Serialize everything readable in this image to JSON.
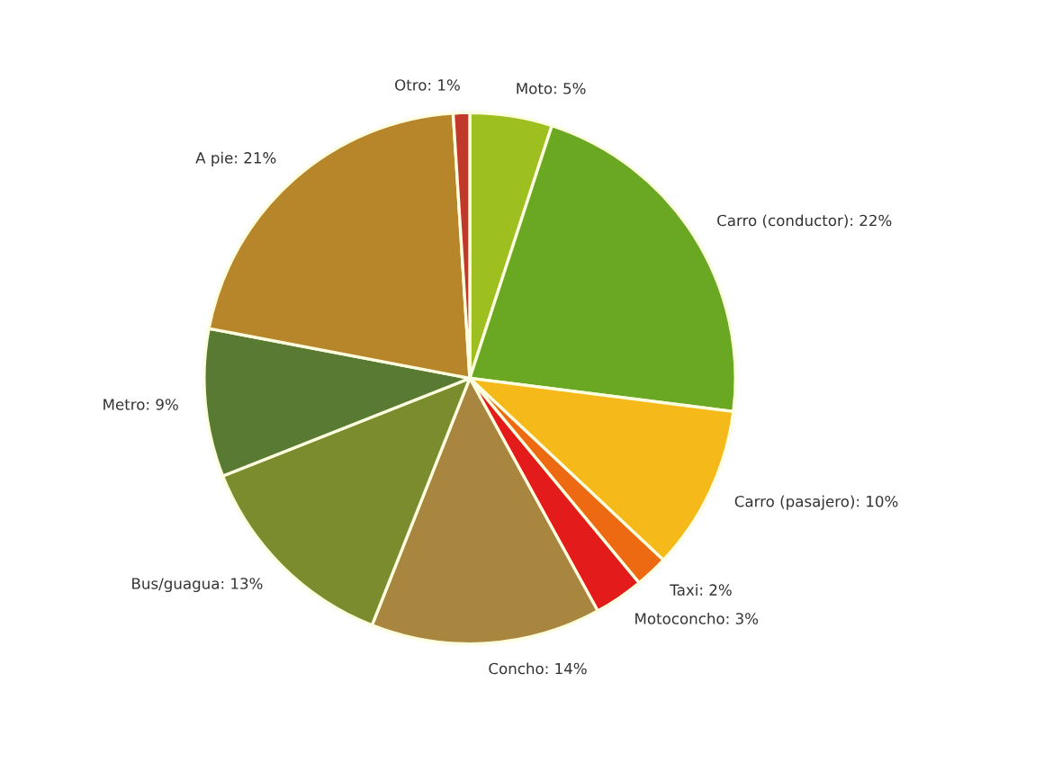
{
  "chart_data": {
    "type": "pie",
    "categories": [
      "Moto: 5%",
      "Carro (conductor): 22%",
      "Carro (pasajero): 10%",
      "Taxi: 2%",
      "Motoconcho: 3%",
      "Concho: 14%",
      "Bus/guagua: 13%",
      "Metro: 9%",
      "A pie: 21%",
      "Otro: 1%"
    ],
    "values": [
      5,
      22,
      10,
      2,
      3,
      14,
      13,
      9,
      21,
      1
    ],
    "colors": [
      "#9dbf1f",
      "#6aa823",
      "#f5b919",
      "#ee6a12",
      "#e31b1b",
      "#a8863f",
      "#7a8c2e",
      "#587a32",
      "#b7862a",
      "#c0392b"
    ]
  }
}
